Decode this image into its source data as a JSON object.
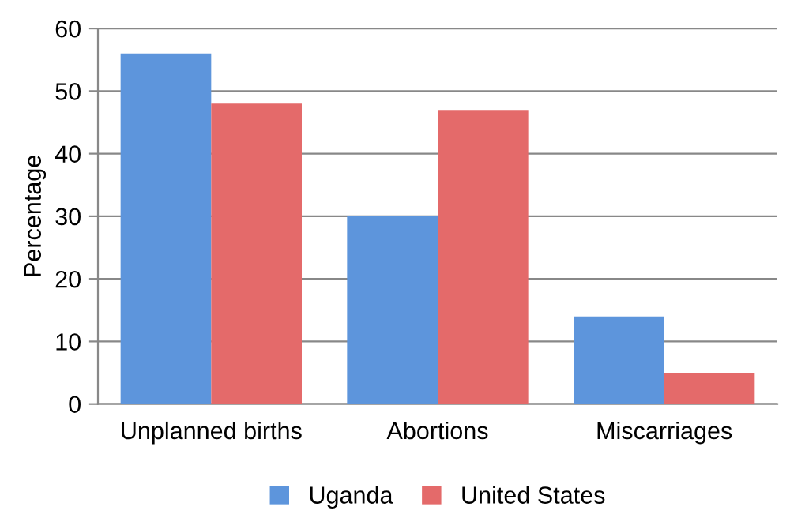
{
  "chart_data": {
    "type": "bar",
    "ylabel": "Percentage",
    "categories": [
      "Unplanned births",
      "Abortions",
      "Miscarriages"
    ],
    "series": [
      {
        "name": "Uganda",
        "color": "#5d95dc",
        "values": [
          56,
          30,
          14
        ]
      },
      {
        "name": "United States",
        "color": "#e46a6a",
        "values": [
          48,
          47,
          5
        ]
      }
    ],
    "ylim": [
      0,
      60
    ],
    "yticks": [
      0,
      10,
      20,
      30,
      40,
      50,
      60
    ],
    "grid": "y",
    "legend": "bottom"
  }
}
